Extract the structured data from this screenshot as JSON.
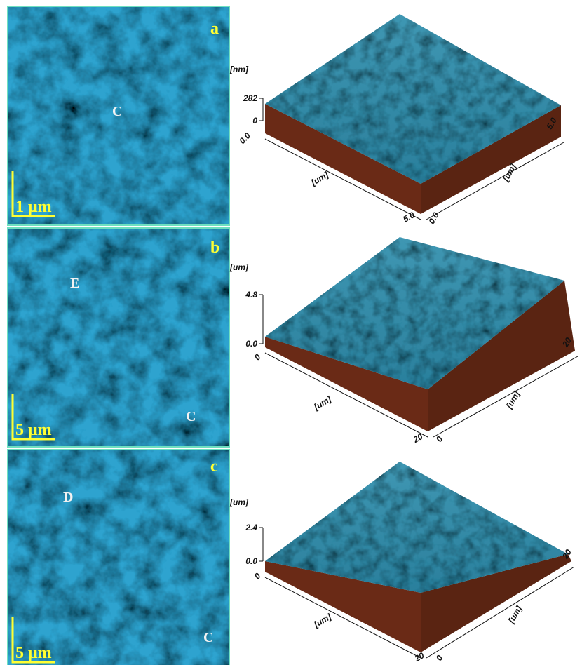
{
  "panels": [
    {
      "label": "a",
      "regions": [
        "C"
      ],
      "scale_bar": "1 μm",
      "surface": {
        "z_unit": "[nm]",
        "z_ticks": [
          "282",
          "0"
        ],
        "x_start": "0.0",
        "x_unit": "[um]",
        "x_end": "5.0",
        "y_start": "0.0",
        "y_unit": "[um]",
        "y_end": "5.0"
      }
    },
    {
      "label": "b",
      "regions": [
        "E",
        "C"
      ],
      "scale_bar": "5 μm",
      "surface": {
        "z_unit": "[um]",
        "z_ticks": [
          "4.8",
          "0.0"
        ],
        "x_start": "0",
        "x_unit": "[um]",
        "x_end": "20",
        "y_start": "0",
        "y_unit": "[um]",
        "y_end": "20"
      }
    },
    {
      "label": "c",
      "regions": [
        "D",
        "C"
      ],
      "scale_bar": "5 μm",
      "surface": {
        "z_unit": "[um]",
        "z_ticks": [
          "2.4",
          "0.0"
        ],
        "x_start": "0",
        "x_unit": "[um]",
        "x_end": "20",
        "y_start": "0",
        "y_unit": "[um]",
        "y_end": "20"
      }
    }
  ]
}
